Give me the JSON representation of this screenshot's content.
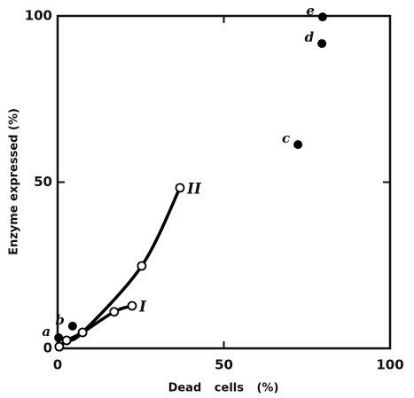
{
  "chart_data": {
    "type": "scatter",
    "xlabel": "Dead cells (%)",
    "ylabel": "Enzyme expressed (%)",
    "xlim": [
      0,
      100
    ],
    "ylim": [
      0,
      100
    ],
    "xticks": [
      0,
      50,
      100
    ],
    "yticks": [
      0,
      50,
      100
    ],
    "series": [
      {
        "name": "II",
        "color": "#000000",
        "marker": "open",
        "line": true,
        "x": [
          0.5,
          2.7,
          7.5,
          25.3,
          36.8
        ],
        "y": [
          0.5,
          2.4,
          4.8,
          24.8,
          48.3
        ]
      },
      {
        "name": "I",
        "color": "#000000",
        "marker": "open",
        "line": true,
        "x": [
          0.5,
          2.7,
          7.5,
          17,
          22.4
        ],
        "y": [
          0.5,
          2.4,
          4.8,
          11,
          12.8
        ]
      }
    ],
    "points": {
      "color": "#000000",
      "marker": "filled",
      "x": [
        0.3,
        4.5,
        72.3,
        79.5,
        79.7
      ],
      "y": [
        3.2,
        6.7,
        61.3,
        91.7,
        99.7
      ],
      "labels": [
        "a",
        "b",
        "c",
        "d",
        "e"
      ]
    }
  }
}
